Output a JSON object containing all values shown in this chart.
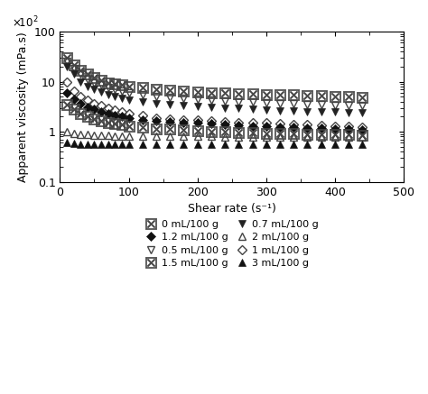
{
  "xlabel": "Shear rate (s⁻¹)",
  "ylabel": "Apparent viscosity (mPa.s)",
  "xlim": [
    0,
    500
  ],
  "ylim_log": [
    0.1,
    100
  ],
  "background_color": "#ffffff",
  "series": [
    {
      "label": "0 mL/100 g",
      "marker": "crosshatch",
      "color": "#444444",
      "fillstyle": "full",
      "markersize": 7,
      "x": [
        10,
        20,
        30,
        40,
        50,
        60,
        70,
        80,
        90,
        100,
        120,
        140,
        160,
        180,
        200,
        220,
        240,
        260,
        280,
        300,
        320,
        340,
        360,
        380,
        400,
        420,
        440
      ],
      "y": [
        30,
        22,
        17,
        14,
        12,
        10.5,
        9.5,
        9,
        8.5,
        8,
        7.5,
        7,
        6.8,
        6.5,
        6.3,
        6.0,
        5.9,
        5.8,
        5.7,
        5.6,
        5.5,
        5.4,
        5.3,
        5.2,
        5.1,
        5.0,
        4.9
      ]
    },
    {
      "label": "0.5 mL/100 g",
      "marker": "v",
      "color": "#444444",
      "fillstyle": "none",
      "markersize": 6,
      "x": [
        10,
        20,
        30,
        40,
        50,
        60,
        70,
        80,
        90,
        100,
        120,
        140,
        160,
        180,
        200,
        220,
        240,
        260,
        280,
        300,
        320,
        340,
        360,
        380,
        400,
        420,
        440
      ],
      "y": [
        25,
        18,
        14,
        11,
        9.5,
        8.5,
        7.5,
        7.0,
        6.5,
        6.0,
        5.5,
        5.0,
        4.8,
        4.6,
        4.4,
        4.2,
        4.1,
        4.0,
        3.9,
        3.8,
        3.7,
        3.6,
        3.5,
        3.45,
        3.4,
        3.35,
        3.3
      ]
    },
    {
      "label": "0.7 mL/100 g",
      "marker": "v",
      "color": "#222222",
      "fillstyle": "full",
      "markersize": 6,
      "x": [
        10,
        20,
        30,
        40,
        50,
        60,
        70,
        80,
        90,
        100,
        120,
        140,
        160,
        180,
        200,
        220,
        240,
        260,
        280,
        300,
        320,
        340,
        360,
        380,
        400,
        420,
        440
      ],
      "y": [
        20,
        14,
        10,
        8,
        7,
        6.2,
        5.5,
        5.0,
        4.6,
        4.3,
        4.0,
        3.7,
        3.5,
        3.3,
        3.2,
        3.1,
        3.0,
        2.9,
        2.8,
        2.7,
        2.65,
        2.6,
        2.55,
        2.5,
        2.45,
        2.4,
        2.35
      ]
    },
    {
      "label": "1 mL/100 g",
      "marker": "D",
      "color": "#444444",
      "fillstyle": "none",
      "markersize": 5,
      "x": [
        10,
        20,
        30,
        40,
        50,
        60,
        70,
        80,
        90,
        100,
        120,
        140,
        160,
        180,
        200,
        220,
        240,
        260,
        280,
        300,
        320,
        340,
        360,
        380,
        400,
        420,
        440
      ],
      "y": [
        10,
        6.5,
        5.0,
        4.2,
        3.7,
        3.3,
        3.0,
        2.7,
        2.5,
        2.3,
        2.1,
        1.9,
        1.8,
        1.75,
        1.7,
        1.65,
        1.6,
        1.55,
        1.5,
        1.5,
        1.45,
        1.4,
        1.4,
        1.35,
        1.3,
        1.3,
        1.25
      ]
    },
    {
      "label": "1.2 mL/100 g",
      "marker": "D",
      "color": "#111111",
      "fillstyle": "full",
      "markersize": 5,
      "x": [
        10,
        20,
        30,
        40,
        50,
        60,
        70,
        80,
        90,
        100,
        120,
        140,
        160,
        180,
        200,
        220,
        240,
        260,
        280,
        300,
        320,
        340,
        360,
        380,
        400,
        420,
        440
      ],
      "y": [
        6.0,
        4.5,
        3.6,
        3.1,
        2.8,
        2.5,
        2.3,
        2.15,
        2.0,
        1.9,
        1.75,
        1.65,
        1.6,
        1.55,
        1.5,
        1.45,
        1.4,
        1.35,
        1.3,
        1.28,
        1.25,
        1.22,
        1.2,
        1.18,
        1.15,
        1.12,
        1.1
      ]
    },
    {
      "label": "1.5 mL/100 g",
      "marker": "crosshatch",
      "color": "#444444",
      "fillstyle": "full",
      "markersize": 7,
      "x": [
        10,
        20,
        30,
        40,
        50,
        60,
        70,
        80,
        90,
        100,
        120,
        140,
        160,
        180,
        200,
        220,
        240,
        260,
        280,
        300,
        320,
        340,
        360,
        380,
        400,
        420,
        440
      ],
      "y": [
        3.5,
        2.8,
        2.3,
        2.0,
        1.8,
        1.65,
        1.55,
        1.45,
        1.38,
        1.3,
        1.22,
        1.16,
        1.12,
        1.08,
        1.05,
        1.02,
        1.0,
        0.98,
        0.96,
        0.94,
        0.92,
        0.91,
        0.9,
        0.89,
        0.88,
        0.87,
        0.86
      ]
    },
    {
      "label": "2 mL/100 g",
      "marker": "^",
      "color": "#444444",
      "fillstyle": "none",
      "markersize": 6,
      "x": [
        10,
        20,
        30,
        40,
        50,
        60,
        70,
        80,
        90,
        100,
        120,
        140,
        160,
        180,
        200,
        220,
        240,
        260,
        280,
        300,
        320,
        340,
        360,
        380,
        400,
        420,
        440
      ],
      "y": [
        1.0,
        0.93,
        0.9,
        0.88,
        0.86,
        0.85,
        0.84,
        0.83,
        0.83,
        0.82,
        0.82,
        0.81,
        0.81,
        0.8,
        0.8,
        0.8,
        0.79,
        0.79,
        0.79,
        0.78,
        0.78,
        0.78,
        0.78,
        0.77,
        0.77,
        0.77,
        0.77
      ]
    },
    {
      "label": "3 mL/100 g",
      "marker": "^",
      "color": "#111111",
      "fillstyle": "full",
      "markersize": 6,
      "x": [
        10,
        20,
        30,
        40,
        50,
        60,
        70,
        80,
        90,
        100,
        120,
        140,
        160,
        180,
        200,
        220,
        240,
        260,
        280,
        300,
        320,
        340,
        360,
        380,
        400,
        420,
        440
      ],
      "y": [
        0.6,
        0.58,
        0.57,
        0.57,
        0.57,
        0.57,
        0.57,
        0.57,
        0.57,
        0.57,
        0.57,
        0.57,
        0.57,
        0.57,
        0.57,
        0.57,
        0.57,
        0.57,
        0.57,
        0.57,
        0.57,
        0.57,
        0.57,
        0.57,
        0.57,
        0.57,
        0.57
      ]
    }
  ],
  "tick_color": "#000000",
  "axis_color": "#000000",
  "font_size": 9
}
